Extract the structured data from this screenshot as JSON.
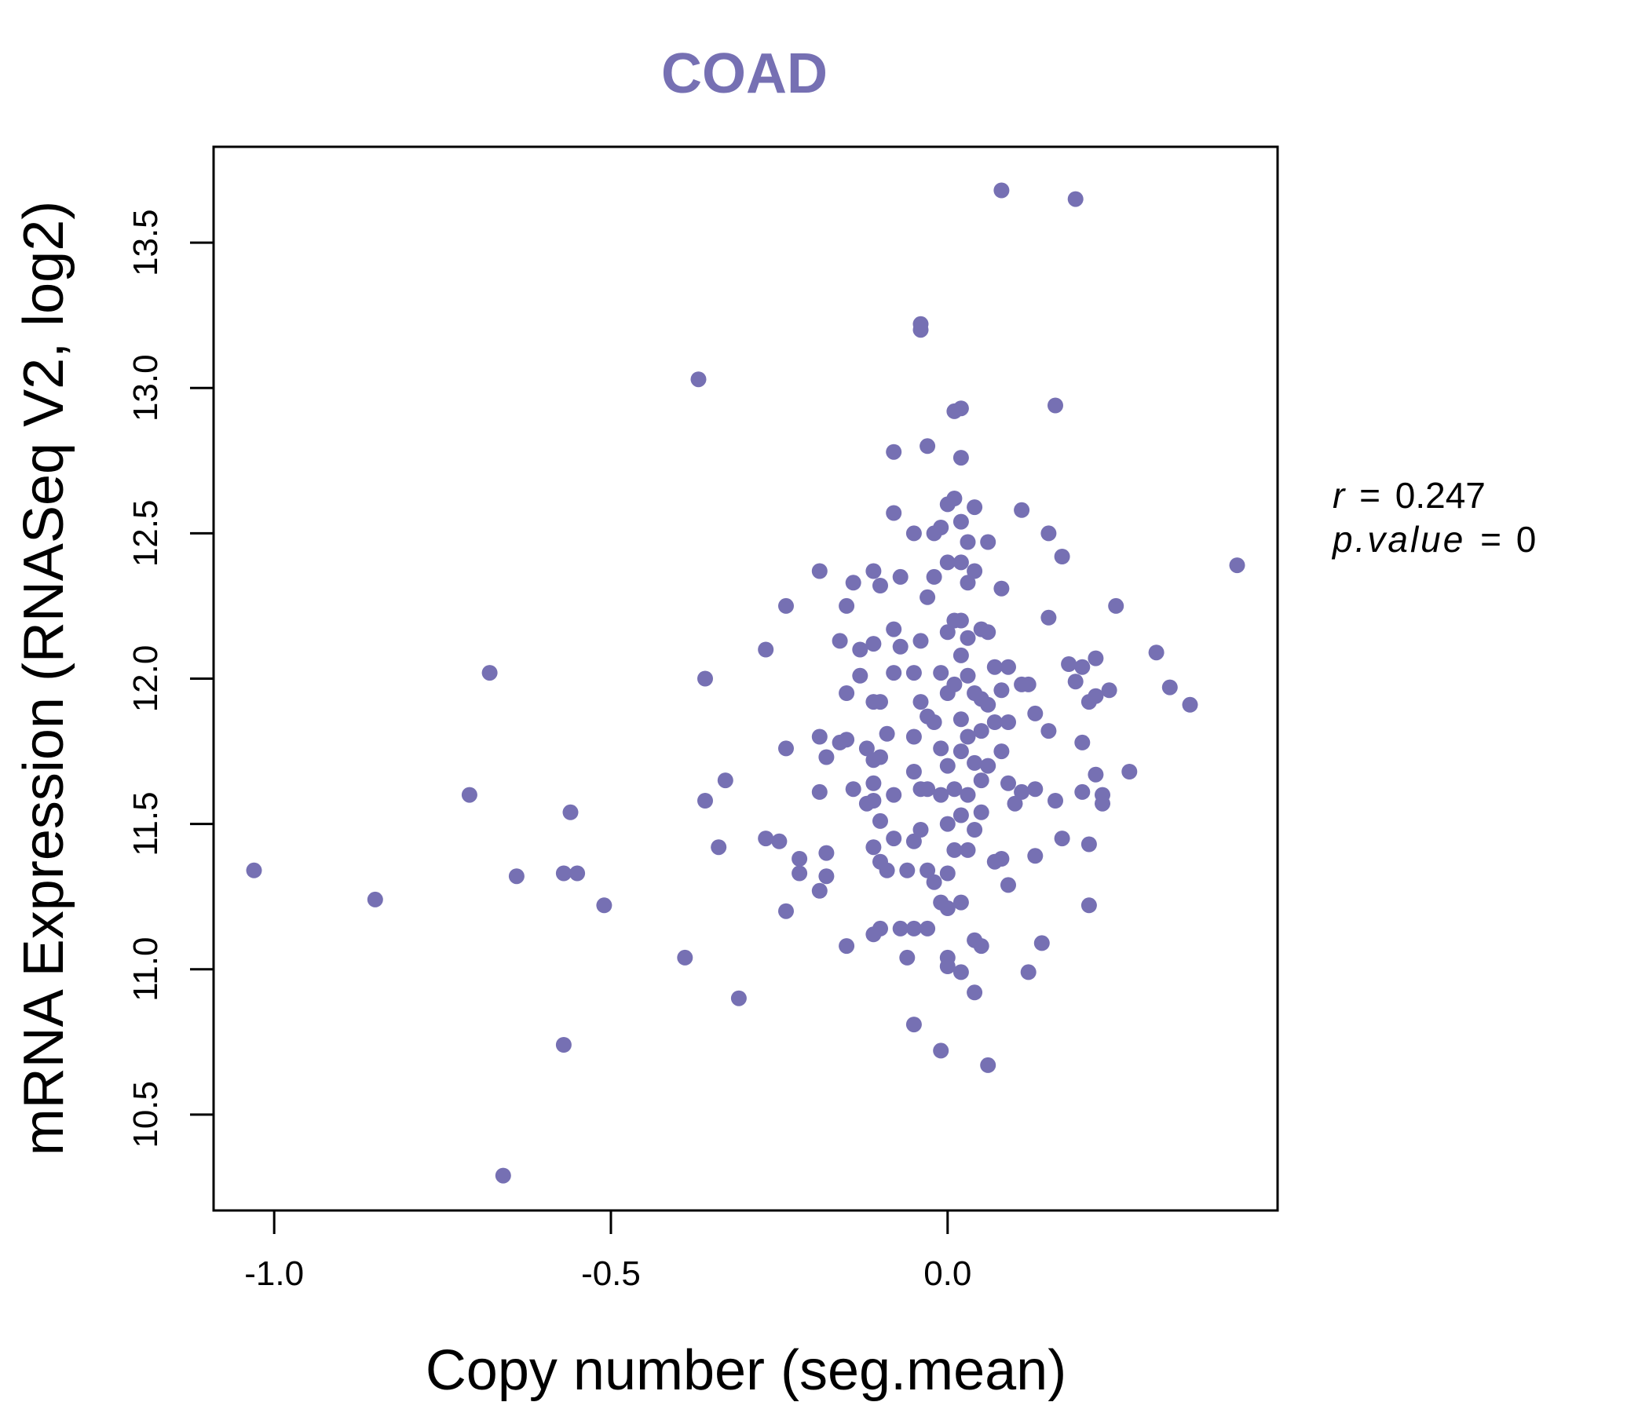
{
  "chart_data": {
    "type": "scatter",
    "title": "COAD",
    "xlabel": "Copy number (seg.mean)",
    "ylabel": "mRNA Expression (RNASeq V2, log2)",
    "xlim": [
      -1.09,
      0.49
    ],
    "ylim": [
      10.17,
      13.83
    ],
    "xticks": [
      -1.0,
      -0.5,
      0.0
    ],
    "xtick_labels": [
      "-1.0",
      "-0.5",
      "0.0"
    ],
    "yticks": [
      10.5,
      11.0,
      11.5,
      12.0,
      12.5,
      13.0,
      13.5
    ],
    "ytick_labels": [
      "10.5",
      "11.0",
      "11.5",
      "12.0",
      "12.5",
      "13.0",
      "13.5"
    ],
    "color": "#7670b3",
    "annotation": {
      "r_symbol": "r",
      "eq": "=",
      "r_value": "0.247",
      "p_symbol": "p.value",
      "p_value": "0"
    },
    "points": [
      [
        -1.03,
        11.34
      ],
      [
        -0.85,
        11.24
      ],
      [
        -0.71,
        11.6
      ],
      [
        -0.68,
        12.02
      ],
      [
        -0.66,
        10.29
      ],
      [
        -0.64,
        11.32
      ],
      [
        -0.57,
        11.33
      ],
      [
        -0.57,
        10.74
      ],
      [
        -0.56,
        11.54
      ],
      [
        -0.55,
        11.33
      ],
      [
        -0.51,
        11.22
      ],
      [
        -0.39,
        11.04
      ],
      [
        -0.37,
        13.03
      ],
      [
        -0.36,
        12.0
      ],
      [
        -0.36,
        11.58
      ],
      [
        -0.34,
        11.42
      ],
      [
        -0.33,
        11.65
      ],
      [
        -0.31,
        10.9
      ],
      [
        -0.27,
        12.1
      ],
      [
        -0.27,
        11.45
      ],
      [
        -0.25,
        11.44
      ],
      [
        -0.24,
        12.25
      ],
      [
        -0.24,
        11.76
      ],
      [
        -0.24,
        11.2
      ],
      [
        -0.22,
        11.38
      ],
      [
        -0.22,
        11.33
      ],
      [
        -0.19,
        12.37
      ],
      [
        -0.19,
        11.8
      ],
      [
        -0.19,
        11.61
      ],
      [
        -0.19,
        11.27
      ],
      [
        -0.18,
        11.73
      ],
      [
        -0.18,
        11.4
      ],
      [
        -0.18,
        11.32
      ],
      [
        -0.16,
        12.13
      ],
      [
        -0.16,
        11.78
      ],
      [
        -0.15,
        12.25
      ],
      [
        -0.15,
        11.95
      ],
      [
        -0.15,
        11.79
      ],
      [
        -0.15,
        11.08
      ],
      [
        -0.14,
        12.33
      ],
      [
        -0.14,
        11.62
      ],
      [
        -0.13,
        12.1
      ],
      [
        -0.13,
        12.01
      ],
      [
        -0.12,
        11.76
      ],
      [
        -0.12,
        11.57
      ],
      [
        -0.11,
        12.37
      ],
      [
        -0.11,
        12.12
      ],
      [
        -0.11,
        11.92
      ],
      [
        -0.11,
        11.72
      ],
      [
        -0.11,
        11.64
      ],
      [
        -0.11,
        11.58
      ],
      [
        -0.11,
        11.42
      ],
      [
        -0.11,
        11.12
      ],
      [
        -0.1,
        12.32
      ],
      [
        -0.1,
        11.92
      ],
      [
        -0.1,
        11.73
      ],
      [
        -0.1,
        11.51
      ],
      [
        -0.1,
        11.37
      ],
      [
        -0.1,
        11.14
      ],
      [
        -0.09,
        11.81
      ],
      [
        -0.09,
        11.34
      ],
      [
        -0.08,
        12.78
      ],
      [
        -0.08,
        12.57
      ],
      [
        -0.08,
        12.17
      ],
      [
        -0.08,
        12.02
      ],
      [
        -0.08,
        11.6
      ],
      [
        -0.08,
        11.45
      ],
      [
        -0.07,
        12.35
      ],
      [
        -0.07,
        12.11
      ],
      [
        -0.07,
        11.14
      ],
      [
        -0.06,
        11.34
      ],
      [
        -0.06,
        11.04
      ],
      [
        -0.05,
        12.5
      ],
      [
        -0.05,
        12.02
      ],
      [
        -0.05,
        11.8
      ],
      [
        -0.05,
        11.68
      ],
      [
        -0.05,
        11.44
      ],
      [
        -0.05,
        11.14
      ],
      [
        -0.05,
        10.81
      ],
      [
        -0.04,
        13.22
      ],
      [
        -0.04,
        13.2
      ],
      [
        -0.04,
        12.13
      ],
      [
        -0.04,
        11.92
      ],
      [
        -0.04,
        11.62
      ],
      [
        -0.04,
        11.48
      ],
      [
        -0.03,
        12.8
      ],
      [
        -0.03,
        12.28
      ],
      [
        -0.03,
        11.87
      ],
      [
        -0.03,
        11.62
      ],
      [
        -0.03,
        11.34
      ],
      [
        -0.03,
        11.14
      ],
      [
        -0.02,
        12.5
      ],
      [
        -0.02,
        12.35
      ],
      [
        -0.02,
        11.85
      ],
      [
        -0.02,
        11.3
      ],
      [
        -0.01,
        12.52
      ],
      [
        -0.01,
        12.02
      ],
      [
        -0.01,
        11.76
      ],
      [
        -0.01,
        11.6
      ],
      [
        -0.01,
        11.23
      ],
      [
        -0.01,
        10.72
      ],
      [
        0.0,
        12.6
      ],
      [
        0.0,
        12.4
      ],
      [
        0.0,
        12.16
      ],
      [
        0.0,
        11.95
      ],
      [
        0.0,
        11.7
      ],
      [
        0.0,
        11.5
      ],
      [
        0.0,
        11.33
      ],
      [
        0.0,
        11.21
      ],
      [
        0.0,
        11.04
      ],
      [
        0.0,
        11.01
      ],
      [
        0.01,
        12.92
      ],
      [
        0.01,
        12.62
      ],
      [
        0.01,
        12.2
      ],
      [
        0.01,
        11.98
      ],
      [
        0.01,
        11.62
      ],
      [
        0.01,
        11.41
      ],
      [
        0.02,
        12.93
      ],
      [
        0.02,
        12.76
      ],
      [
        0.02,
        12.54
      ],
      [
        0.02,
        12.4
      ],
      [
        0.02,
        12.2
      ],
      [
        0.02,
        12.08
      ],
      [
        0.02,
        11.86
      ],
      [
        0.02,
        11.75
      ],
      [
        0.02,
        11.53
      ],
      [
        0.02,
        11.23
      ],
      [
        0.02,
        10.99
      ],
      [
        0.03,
        12.47
      ],
      [
        0.03,
        12.33
      ],
      [
        0.03,
        12.14
      ],
      [
        0.03,
        12.01
      ],
      [
        0.03,
        11.8
      ],
      [
        0.03,
        11.6
      ],
      [
        0.03,
        11.41
      ],
      [
        0.04,
        12.59
      ],
      [
        0.04,
        12.37
      ],
      [
        0.04,
        11.95
      ],
      [
        0.04,
        11.71
      ],
      [
        0.04,
        11.48
      ],
      [
        0.04,
        11.1
      ],
      [
        0.04,
        10.92
      ],
      [
        0.05,
        12.17
      ],
      [
        0.05,
        11.93
      ],
      [
        0.05,
        11.82
      ],
      [
        0.05,
        11.65
      ],
      [
        0.05,
        11.54
      ],
      [
        0.05,
        11.08
      ],
      [
        0.06,
        12.47
      ],
      [
        0.06,
        12.16
      ],
      [
        0.06,
        11.91
      ],
      [
        0.06,
        11.7
      ],
      [
        0.06,
        10.67
      ],
      [
        0.07,
        12.04
      ],
      [
        0.07,
        11.85
      ],
      [
        0.07,
        11.37
      ],
      [
        0.08,
        13.68
      ],
      [
        0.08,
        12.31
      ],
      [
        0.08,
        11.96
      ],
      [
        0.08,
        11.75
      ],
      [
        0.08,
        11.38
      ],
      [
        0.09,
        12.04
      ],
      [
        0.09,
        11.85
      ],
      [
        0.09,
        11.64
      ],
      [
        0.09,
        11.29
      ],
      [
        0.1,
        11.57
      ],
      [
        0.11,
        12.58
      ],
      [
        0.11,
        11.98
      ],
      [
        0.11,
        11.61
      ],
      [
        0.12,
        11.98
      ],
      [
        0.12,
        10.99
      ],
      [
        0.13,
        11.88
      ],
      [
        0.13,
        11.62
      ],
      [
        0.13,
        11.39
      ],
      [
        0.14,
        11.09
      ],
      [
        0.15,
        12.5
      ],
      [
        0.15,
        12.21
      ],
      [
        0.15,
        11.82
      ],
      [
        0.16,
        12.94
      ],
      [
        0.16,
        11.58
      ],
      [
        0.17,
        12.42
      ],
      [
        0.17,
        11.45
      ],
      [
        0.18,
        12.05
      ],
      [
        0.19,
        13.65
      ],
      [
        0.19,
        11.99
      ],
      [
        0.2,
        12.04
      ],
      [
        0.2,
        11.78
      ],
      [
        0.2,
        11.61
      ],
      [
        0.21,
        11.92
      ],
      [
        0.21,
        11.43
      ],
      [
        0.21,
        11.22
      ],
      [
        0.22,
        12.07
      ],
      [
        0.22,
        11.94
      ],
      [
        0.22,
        11.67
      ],
      [
        0.23,
        11.6
      ],
      [
        0.23,
        11.57
      ],
      [
        0.24,
        11.96
      ],
      [
        0.25,
        12.25
      ],
      [
        0.27,
        11.68
      ],
      [
        0.31,
        12.09
      ],
      [
        0.33,
        11.97
      ],
      [
        0.36,
        11.91
      ],
      [
        0.43,
        12.39
      ]
    ]
  }
}
